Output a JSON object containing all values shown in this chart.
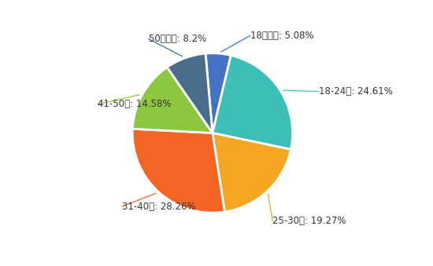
{
  "labels": [
    "18岁以下",
    "18-24岁",
    "25-30岁",
    "31-40岁",
    "41-50岁",
    "50岁以上"
  ],
  "values": [
    5.08,
    24.61,
    19.27,
    28.26,
    14.58,
    8.2
  ],
  "colors": [
    "#4472C4",
    "#3DBFB8",
    "#F5A623",
    "#F26522",
    "#8DC63F",
    "#4A6D8C"
  ],
  "label_texts": [
    "18岁以下: 5.08%",
    "18-24岁: 24.61%",
    "25-30岁: 19.27%",
    "31-40岁: 28.26%",
    "41-50岁: 14.58%",
    "50岁以上: 8.2%"
  ],
  "startangle": 95,
  "background_color": "#ffffff",
  "text_color": "#333333",
  "edgecolor": "#ffffff",
  "linewidth": 2.0
}
